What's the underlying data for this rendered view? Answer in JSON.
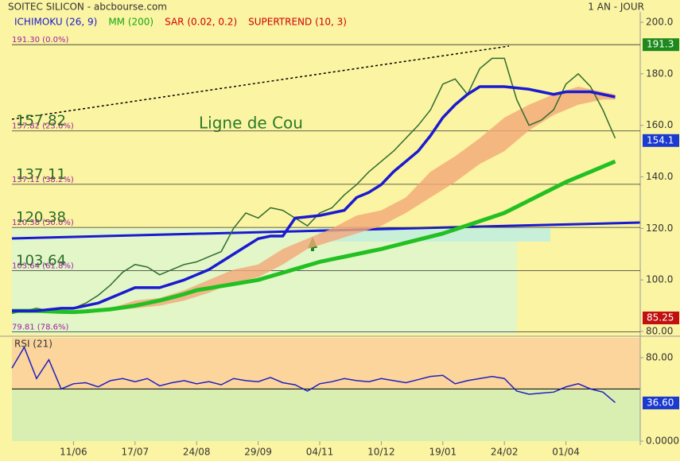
{
  "chart_data": {
    "type": "line",
    "title": "SOITEC SILICON - abcbourse.com",
    "period": "1 AN - JOUR",
    "annotation": "Ligne de Cou",
    "legend": [
      {
        "name": "ICHIMOKU (26, 9)",
        "color": "#1a1ad0"
      },
      {
        "name": "MM (200)",
        "color": "#12a812"
      },
      {
        "name": "SAR (0.02, 0.2)",
        "color": "#d00000"
      },
      {
        "name": "SUPERTREND (10, 3)",
        "color": "#d00000"
      }
    ],
    "categories": [
      null,
      null,
      null,
      null,
      null,
      "11/06",
      null,
      null,
      null,
      null,
      "17/07",
      null,
      null,
      null,
      null,
      "24/08",
      null,
      null,
      null,
      null,
      "29/09",
      null,
      null,
      null,
      null,
      "04/11",
      null,
      null,
      null,
      null,
      "10/12",
      null,
      null,
      null,
      null,
      "19/01",
      null,
      null,
      null,
      null,
      "24/02",
      null,
      null,
      null,
      null,
      "01/04",
      null,
      null,
      null,
      null
    ],
    "ylim": [
      80,
      200
    ],
    "yticks": [
      {
        "value": 200,
        "label": "200.0"
      },
      {
        "value": 180,
        "label": "180.0"
      },
      {
        "value": 160,
        "label": "160.0"
      },
      {
        "value": 140,
        "label": "140.0"
      },
      {
        "value": 120,
        "label": "120.0"
      },
      {
        "value": 100,
        "label": "100.0"
      },
      {
        "value": 80,
        "label": "80.00"
      }
    ],
    "series": [
      {
        "name": "Cours",
        "color": "#2f6b2f",
        "values": [
          87,
          88,
          89,
          88,
          89,
          89,
          91,
          94,
          98,
          103,
          106,
          105,
          102,
          104,
          106,
          107,
          109,
          111,
          120,
          126,
          124,
          128,
          127,
          124,
          121,
          126,
          128,
          133,
          137,
          142,
          146,
          150,
          155,
          160,
          166,
          176,
          178,
          172,
          182,
          186,
          186,
          170,
          160,
          162,
          166,
          176,
          180,
          175,
          166,
          155
        ]
      },
      {
        "name": "MM (200)",
        "color": "#22c022",
        "values": [
          88,
          88,
          88,
          87.8,
          87.6,
          87.5,
          87.8,
          88.2,
          88.6,
          89.3,
          90,
          91,
          92,
          93.2,
          94.5,
          96,
          96.8,
          97.6,
          98.4,
          99.2,
          100,
          101.4,
          102.8,
          104.2,
          105.6,
          107,
          108,
          109,
          110,
          111,
          112,
          113.2,
          114.4,
          115.6,
          116.8,
          118,
          119.6,
          121.2,
          122.8,
          124.4,
          126,
          128.4,
          130.8,
          133.2,
          135.6,
          138,
          140,
          142,
          144,
          146
        ]
      },
      {
        "name": "ICHIMOKU (26, 9)",
        "color": "#1a1ad0",
        "values": [
          88,
          88,
          88,
          88.5,
          89,
          89,
          90,
          91,
          93,
          95,
          97,
          97,
          97,
          98.5,
          100,
          102,
          104,
          107,
          110,
          113,
          116,
          117,
          117,
          124,
          124.5,
          125,
          126,
          127,
          132,
          134,
          137,
          142,
          146,
          150,
          156,
          163,
          168,
          172,
          175,
          175,
          175,
          174.5,
          174,
          173,
          172,
          173,
          173,
          173,
          172,
          171
        ]
      }
    ],
    "cloud": {
      "color": "#f4a878",
      "upper": [
        null,
        null,
        null,
        null,
        null,
        null,
        null,
        null,
        89,
        90.5,
        92,
        92.5,
        93,
        94.5,
        96,
        98,
        100,
        102,
        104,
        105,
        106,
        109,
        112,
        114,
        116,
        118,
        120,
        122.5,
        125,
        126,
        127,
        129.5,
        132,
        137,
        142,
        145,
        148,
        151.5,
        155,
        159,
        163,
        165.5,
        168,
        170,
        172,
        173.5,
        175,
        174,
        173,
        172
      ],
      "lower": [
        null,
        null,
        null,
        null,
        null,
        null,
        null,
        null,
        88,
        88.5,
        89,
        89.5,
        90,
        91,
        92,
        93.5,
        95,
        97,
        99,
        100,
        101,
        103.5,
        106,
        109,
        112,
        113.5,
        115,
        116.5,
        118,
        119.5,
        121,
        123.5,
        126,
        129,
        132,
        135,
        138,
        141.5,
        145,
        147.5,
        150,
        154,
        158,
        161,
        164,
        166,
        168,
        169,
        170,
        170
      ]
    },
    "fib_levels": [
      {
        "value": 191.3,
        "label": "191.30 (0.0%)"
      },
      {
        "value": 157.82,
        "label": "157.82 (23.6%)",
        "tag": "157.82"
      },
      {
        "value": 137.11,
        "label": "137.11 (38.2%)",
        "tag": "137.11"
      },
      {
        "value": 120.38,
        "label": "120.38 (50.0%)",
        "tag": "120.38"
      },
      {
        "value": 103.64,
        "label": "103.64 (61.8%)",
        "tag": "103.64"
      },
      {
        "value": 79.81,
        "label": "79.81 (78.6%)"
      }
    ],
    "price_tags": [
      {
        "value": 191.3,
        "label": "191.3",
        "color": "#1e8a1e"
      },
      {
        "value": 154.1,
        "label": "154.1",
        "color": "#1a3ad0"
      },
      {
        "value": 85.25,
        "label": "85.25",
        "color": "#c01010"
      }
    ],
    "rsi": {
      "title": "RSI (21)",
      "color": "#2020c0",
      "zone_split": 50,
      "ylim": [
        0,
        100
      ],
      "yticks": [
        {
          "value": 80,
          "label": "80.00"
        },
        {
          "value": 0,
          "label": "0.0000"
        }
      ],
      "values": [
        70,
        90,
        60,
        78,
        50,
        55,
        56,
        52,
        58,
        60,
        57,
        60,
        53,
        56,
        58,
        55,
        57,
        54,
        60,
        58,
        57,
        61,
        56,
        54,
        48,
        55,
        57,
        60,
        58,
        57,
        60,
        58,
        56,
        59,
        62,
        63,
        55,
        58,
        60,
        62,
        60,
        48,
        45,
        46,
        47,
        52,
        55,
        50,
        47,
        37
      ],
      "tag": {
        "value": 36.6,
        "label": "36.60",
        "color": "#1a3ad0"
      }
    }
  }
}
